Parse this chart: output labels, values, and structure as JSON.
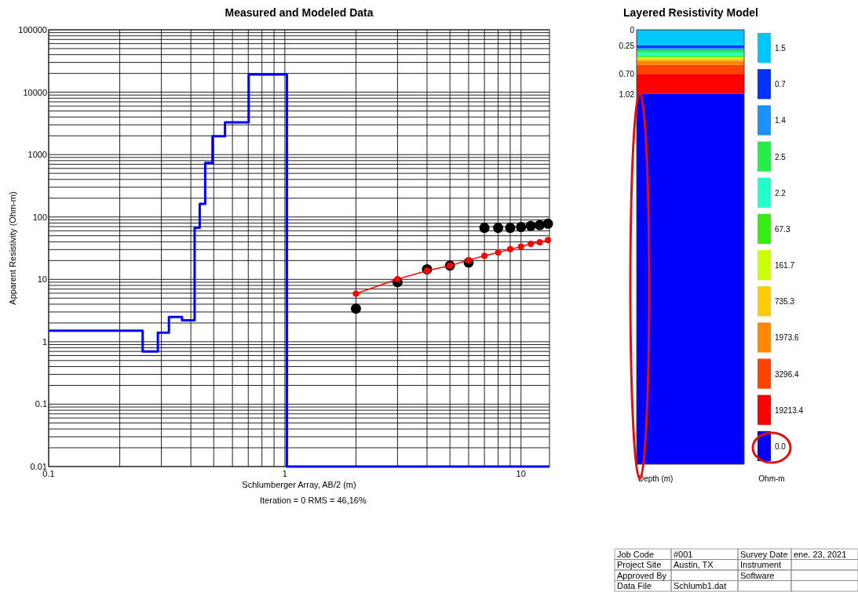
{
  "chart_data": [
    {
      "type": "line",
      "title": "Measured and Modeled Data",
      "xlabel": "Schlumberger Array, AB/2 (m)",
      "ylabel": "Apparent Resistivity (Ohm-m)",
      "log": "xy",
      "grid": true,
      "xlim": [
        0.1,
        13.2
      ],
      "xticks": [
        0.1,
        1,
        10
      ],
      "ylim": [
        0.01,
        100000
      ],
      "yticks": [
        0.01,
        0.1,
        1,
        10,
        100,
        1000,
        10000,
        100000
      ],
      "annotations": [
        "Iteration = 0   RMS = 46,16%"
      ],
      "series": [
        {
          "type": "step",
          "color": "#0000ff",
          "marker": "none",
          "x": [
            0.1,
            0.25,
            0.29,
            0.323,
            0.367,
            0.415,
            0.436,
            0.46,
            0.494,
            0.558,
            0.703,
            1.02,
            13.2
          ],
          "values": [
            1.5,
            0.7,
            1.4,
            2.5,
            2.2,
            67.3,
            161.7,
            735.3,
            1973.6,
            3296.4,
            19213.4,
            0.01,
            0.01
          ]
        },
        {
          "type": "line",
          "color": "#ff0000",
          "marker": "circle",
          "x": [
            2,
            3,
            4,
            5,
            6,
            7,
            8,
            9,
            10,
            11,
            12,
            13
          ],
          "values": [
            5.9,
            10.1,
            13.8,
            16.6,
            20.4,
            23.8,
            27,
            30.4,
            33.6,
            37,
            39.4,
            42.6
          ]
        },
        {
          "type": "scatter",
          "color": "#000000",
          "marker": "circle",
          "x": [
            2,
            3,
            4,
            5,
            6,
            7,
            8,
            9,
            10,
            11,
            12,
            13
          ],
          "values": [
            3.4,
            9,
            14.5,
            16.6,
            18.6,
            67,
            67,
            67,
            69,
            72,
            74,
            78
          ]
        }
      ]
    },
    {
      "type": "other",
      "title": "Layered Resistivity Model",
      "xlabel": "Depth (m)",
      "clabel": "Ohm-m",
      "categories": [
        "1.5",
        "0.7",
        "1.4",
        "2.5",
        "2.2",
        "67.3",
        "161.7",
        "735.3",
        "1973.6",
        "3296.4",
        "19213.4",
        "0.0"
      ],
      "colors": [
        "#00c8ff",
        "#0033ff",
        "#1e90ff",
        "#22ee44",
        "#22ffcc",
        "#33ee11",
        "#ccff00",
        "#ffcc00",
        "#ff8800",
        "#ff4400",
        "#ff0000",
        "#0000ff"
      ],
      "annotations": [
        "0",
        "0.25",
        "0.70",
        "1.02"
      ]
    },
    {
      "type": "other",
      "cells": [
        [
          "Job Code",
          "#001",
          "Survey Date",
          "ene. 23, 2021"
        ],
        [
          "Project Site",
          "Austin, TX",
          "Instrument",
          null
        ],
        [
          "Approved By",
          null,
          "Software",
          null
        ],
        [
          "Data File",
          "Schlumb1.dat",
          null,
          null
        ]
      ]
    }
  ]
}
